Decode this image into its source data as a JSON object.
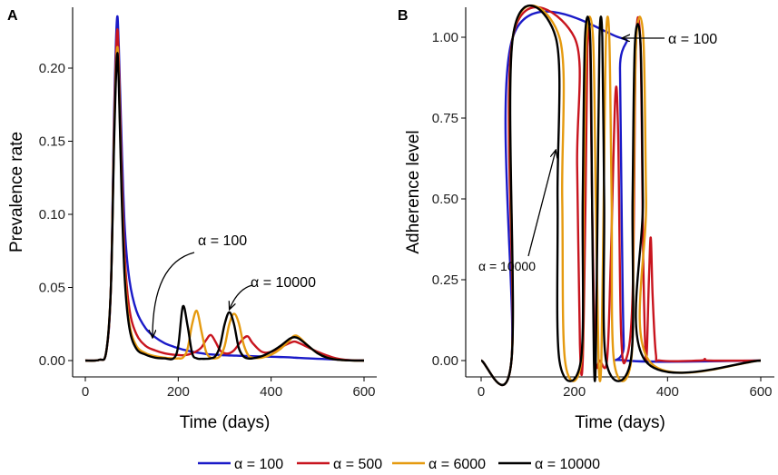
{
  "chart_data": [
    {
      "panel": "A",
      "type": "line",
      "xlabel": "Time (days)",
      "ylabel": "Prevalence rate",
      "xlim": [
        0,
        600
      ],
      "ylim": [
        0,
        0.25
      ],
      "xticks": [
        "0",
        "200",
        "400",
        "600"
      ],
      "yticks": [
        "0.00",
        "0.05",
        "0.10",
        "0.15",
        "0.20"
      ],
      "x": [
        0,
        30,
        45,
        55,
        62,
        68,
        72,
        78,
        85,
        95,
        110,
        130,
        150,
        170,
        190,
        200,
        210,
        220,
        230,
        240,
        250,
        260,
        270,
        280,
        290,
        300,
        310,
        320,
        330,
        340,
        350,
        360,
        380,
        400,
        420,
        440,
        450,
        460,
        480,
        500,
        520,
        540,
        560,
        580,
        600
      ],
      "series": [
        {
          "name": "α = 100",
          "color": "#1a1ac8",
          "values": [
            0,
            0.0005,
            0.006,
            0.05,
            0.17,
            0.233,
            0.215,
            0.15,
            0.09,
            0.055,
            0.034,
            0.022,
            0.016,
            0.012,
            0.0095,
            0.0085,
            0.0075,
            0.0068,
            0.006,
            0.0055,
            0.005,
            0.0045,
            0.0042,
            0.004,
            0.0038,
            0.0036,
            0.0035,
            0.0034,
            0.0033,
            0.0032,
            0.0031,
            0.003,
            0.0028,
            0.0026,
            0.0024,
            0.0022,
            0.002,
            0.0018,
            0.0015,
            0.0012,
            0.001,
            0.0007,
            0.0004,
            0.0002,
            0.0001
          ]
        },
        {
          "name": "α = 500",
          "color": "#c8141e",
          "values": [
            0,
            0.0005,
            0.006,
            0.05,
            0.16,
            0.224,
            0.205,
            0.13,
            0.07,
            0.035,
            0.018,
            0.01,
            0.007,
            0.005,
            0.004,
            0.0038,
            0.0036,
            0.004,
            0.005,
            0.0065,
            0.009,
            0.014,
            0.0175,
            0.013,
            0.007,
            0.005,
            0.005,
            0.007,
            0.011,
            0.015,
            0.0165,
            0.012,
            0.006,
            0.006,
            0.009,
            0.012,
            0.013,
            0.012,
            0.009,
            0.006,
            0.0035,
            0.0015,
            0.0005,
            0.0001,
            0
          ]
        },
        {
          "name": "α = 6000",
          "color": "#e59a0f",
          "values": [
            0,
            0.0005,
            0.006,
            0.05,
            0.155,
            0.212,
            0.195,
            0.12,
            0.06,
            0.025,
            0.01,
            0.005,
            0.003,
            0.002,
            0.0015,
            0.0015,
            0.002,
            0.008,
            0.025,
            0.034,
            0.02,
            0.006,
            0.002,
            0.0015,
            0.003,
            0.01,
            0.025,
            0.032,
            0.026,
            0.012,
            0.004,
            0.002,
            0.002,
            0.004,
            0.008,
            0.014,
            0.017,
            0.016,
            0.01,
            0.005,
            0.002,
            0.0007,
            0.0002,
            0,
            0
          ]
        },
        {
          "name": "α = 10000",
          "color": "#000000",
          "values": [
            0,
            0.0005,
            0.006,
            0.05,
            0.15,
            0.208,
            0.19,
            0.115,
            0.055,
            0.022,
            0.008,
            0.004,
            0.002,
            0.0015,
            0.0015,
            0.01,
            0.037,
            0.024,
            0.005,
            0.0015,
            0.0012,
            0.0012,
            0.0015,
            0.003,
            0.01,
            0.025,
            0.033,
            0.025,
            0.009,
            0.003,
            0.0015,
            0.0015,
            0.003,
            0.006,
            0.01,
            0.015,
            0.016,
            0.015,
            0.01,
            0.005,
            0.002,
            0.0007,
            0.0002,
            0,
            0
          ]
        }
      ],
      "annotations": [
        {
          "text": "α = 100",
          "target_x": 145,
          "target_y": 0.018
        },
        {
          "text": "α = 10000",
          "target_x": 312,
          "target_y": 0.035
        }
      ]
    },
    {
      "panel": "B",
      "type": "line",
      "xlabel": "Time (days)",
      "ylabel": "Adherence level",
      "xlim": [
        0,
        600
      ],
      "ylim": [
        0,
        1.05
      ],
      "xticks": [
        "0",
        "200",
        "400",
        "600"
      ],
      "yticks": [
        "0.00",
        "0.25",
        "0.50",
        "0.75",
        "1.00"
      ],
      "series": [
        {
          "name": "α = 100",
          "color": "#1a1ac8",
          "points": [
            [
              0,
              0
            ],
            [
              65,
              0
            ],
            [
              68,
              1
            ],
            [
              295,
              1
            ],
            [
              298,
              0.9
            ],
            [
              302,
              0.4
            ],
            [
              306,
              0.05
            ],
            [
              312,
              0
            ],
            [
              600,
              0
            ]
          ]
        },
        {
          "name": "α = 500",
          "color": "#c8141e",
          "points": [
            [
              0,
              0
            ],
            [
              65,
              0
            ],
            [
              68,
              1
            ],
            [
              200,
              1
            ],
            [
              206,
              0.6
            ],
            [
              212,
              0.05
            ],
            [
              218,
              0
            ],
            [
              224,
              0.5
            ],
            [
              228,
              0.97
            ],
            [
              234,
              0.97
            ],
            [
              238,
              0.5
            ],
            [
              245,
              0.02
            ],
            [
              255,
              0
            ],
            [
              270,
              0
            ],
            [
              278,
              0.3
            ],
            [
              288,
              0.82
            ],
            [
              294,
              0.7
            ],
            [
              300,
              0.1
            ],
            [
              310,
              0
            ],
            [
              325,
              0.2
            ],
            [
              332,
              0.97
            ],
            [
              342,
              0.97
            ],
            [
              348,
              0.3
            ],
            [
              354,
              0
            ],
            [
              360,
              0.25
            ],
            [
              364,
              0.38
            ],
            [
              368,
              0.2
            ],
            [
              375,
              0.02
            ],
            [
              385,
              0
            ],
            [
              470,
              0
            ],
            [
              480,
              0.005
            ],
            [
              490,
              0
            ],
            [
              600,
              0
            ]
          ]
        },
        {
          "name": "α = 6000",
          "color": "#e59a0f",
          "points": [
            [
              0,
              0
            ],
            [
              65,
              0
            ],
            [
              68,
              1
            ],
            [
              168,
              1
            ],
            [
              174,
              0.5
            ],
            [
              180,
              0
            ],
            [
              215,
              0
            ],
            [
              220,
              0.5
            ],
            [
              226,
              1
            ],
            [
              240,
              1
            ],
            [
              246,
              0.5
            ],
            [
              252,
              0
            ],
            [
              258,
              0
            ],
            [
              263,
              0.5
            ],
            [
              268,
              1
            ],
            [
              275,
              1
            ],
            [
              280,
              0.5
            ],
            [
              285,
              0
            ],
            [
              322,
              0
            ],
            [
              327,
              0.5
            ],
            [
              333,
              1
            ],
            [
              348,
              1
            ],
            [
              354,
              0.5
            ],
            [
              360,
              0
            ],
            [
              600,
              0
            ]
          ]
        },
        {
          "name": "α = 10000",
          "color": "#000000",
          "points": [
            [
              0,
              0
            ],
            [
              65,
              0
            ],
            [
              68,
              1
            ],
            [
              160,
              1
            ],
            [
              164,
              0.5
            ],
            [
              168,
              0
            ],
            [
              214,
              0
            ],
            [
              218,
              0.5
            ],
            [
              223,
              1
            ],
            [
              234,
              1
            ],
            [
              238,
              0.5
            ],
            [
              242,
              0
            ],
            [
              246,
              0
            ],
            [
              250,
              0.5
            ],
            [
              254,
              1
            ],
            [
              260,
              1
            ],
            [
              264,
              0.5
            ],
            [
              268,
              0
            ],
            [
              321,
              0
            ],
            [
              325,
              0.5
            ],
            [
              330,
              0.98
            ],
            [
              342,
              0.98
            ],
            [
              347,
              0.5
            ],
            [
              352,
              0
            ],
            [
              600,
              0
            ]
          ]
        }
      ],
      "annotations": [
        {
          "text": "α = 100",
          "target_x": 305,
          "target_y": 1.0
        },
        {
          "text": "α = 10000",
          "target_x": 165,
          "target_y": 0.65
        }
      ]
    }
  ],
  "legend": {
    "placement": "bottom",
    "items": [
      {
        "label": "α = 100",
        "color": "#1a1ac8"
      },
      {
        "label": "α = 500",
        "color": "#c8141e"
      },
      {
        "label": "α = 6000",
        "color": "#e59a0f"
      },
      {
        "label": "α = 10000",
        "color": "#000000"
      }
    ]
  }
}
